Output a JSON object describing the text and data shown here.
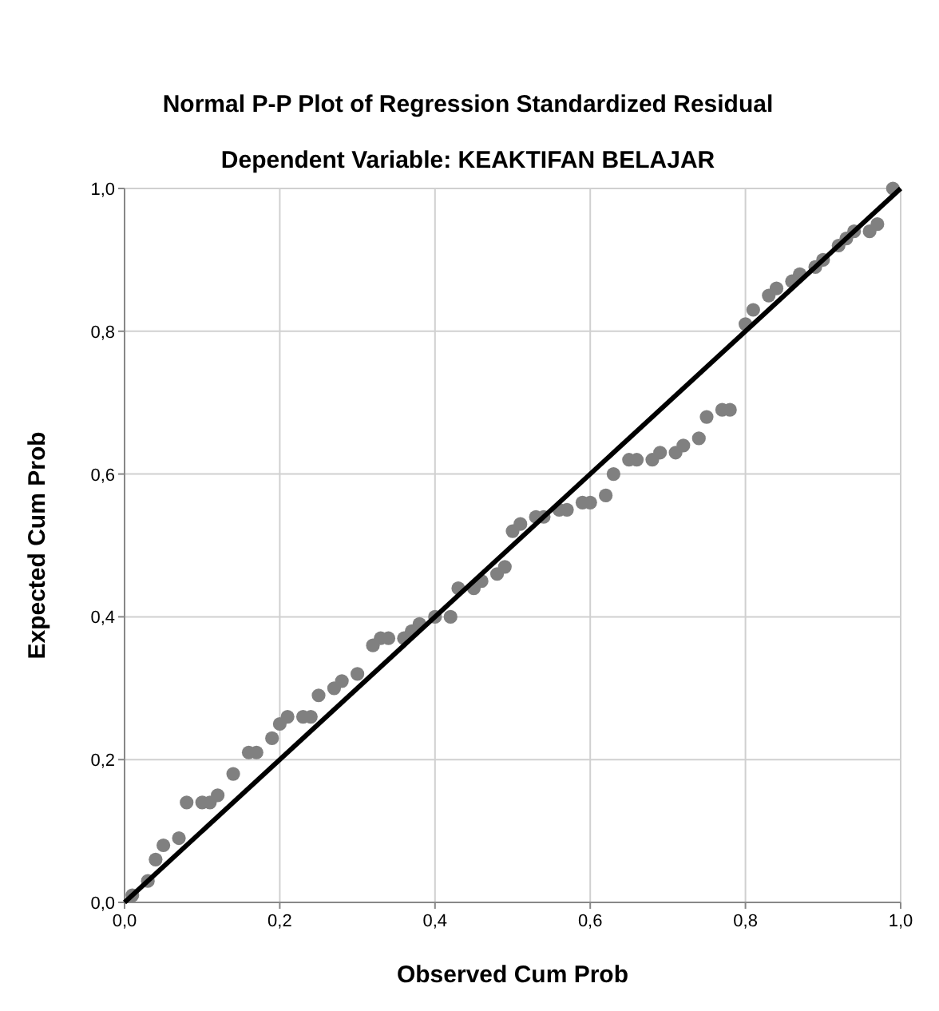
{
  "chart_data": {
    "type": "scatter",
    "title": "Normal P-P Plot of Regression Standardized Residual",
    "subtitle": "Dependent Variable: KEAKTIFAN BELAJAR",
    "xlabel": "Observed Cum Prob",
    "ylabel": "Expected Cum Prob",
    "xlim": [
      0,
      1
    ],
    "ylim": [
      0,
      1
    ],
    "xticks": [
      {
        "value": 0,
        "label": "0,0"
      },
      {
        "value": 0.2,
        "label": "0,2"
      },
      {
        "value": 0.4,
        "label": "0,4"
      },
      {
        "value": 0.6,
        "label": "0,6"
      },
      {
        "value": 0.8,
        "label": "0,8"
      },
      {
        "value": 1,
        "label": "1,0"
      }
    ],
    "yticks": [
      {
        "value": 0,
        "label": "0,0"
      },
      {
        "value": 0.2,
        "label": "0,2"
      },
      {
        "value": 0.4,
        "label": "0,4"
      },
      {
        "value": 0.6,
        "label": "0,6"
      },
      {
        "value": 0.8,
        "label": "0,8"
      },
      {
        "value": 1,
        "label": "1,0"
      }
    ],
    "grid": true,
    "series": [
      {
        "marker": "circle",
        "color": "#808080",
        "x": [
          0.01,
          0.03,
          0.04,
          0.05,
          0.07,
          0.08,
          0.1,
          0.11,
          0.12,
          0.14,
          0.16,
          0.17,
          0.19,
          0.2,
          0.21,
          0.23,
          0.24,
          0.25,
          0.27,
          0.28,
          0.3,
          0.32,
          0.33,
          0.34,
          0.36,
          0.37,
          0.38,
          0.4,
          0.42,
          0.43,
          0.45,
          0.46,
          0.48,
          0.49,
          0.5,
          0.51,
          0.53,
          0.54,
          0.56,
          0.57,
          0.59,
          0.6,
          0.62,
          0.63,
          0.65,
          0.66,
          0.68,
          0.69,
          0.71,
          0.72,
          0.74,
          0.75,
          0.77,
          0.78,
          0.8,
          0.81,
          0.83,
          0.84,
          0.86,
          0.87,
          0.89,
          0.9,
          0.92,
          0.93,
          0.94,
          0.96,
          0.97,
          0.99
        ],
        "values": [
          0.01,
          0.03,
          0.06,
          0.08,
          0.09,
          0.14,
          0.14,
          0.14,
          0.15,
          0.18,
          0.21,
          0.21,
          0.23,
          0.25,
          0.26,
          0.26,
          0.26,
          0.29,
          0.3,
          0.31,
          0.32,
          0.36,
          0.37,
          0.37,
          0.37,
          0.38,
          0.39,
          0.4,
          0.4,
          0.44,
          0.44,
          0.45,
          0.46,
          0.47,
          0.52,
          0.53,
          0.54,
          0.54,
          0.55,
          0.55,
          0.56,
          0.56,
          0.57,
          0.6,
          0.62,
          0.62,
          0.62,
          0.63,
          0.63,
          0.64,
          0.65,
          0.68,
          0.69,
          0.69,
          0.81,
          0.83,
          0.85,
          0.86,
          0.87,
          0.88,
          0.89,
          0.9,
          0.92,
          0.93,
          0.94,
          0.94,
          0.95,
          1.0
        ]
      },
      {
        "type": "line",
        "line_style": "solid",
        "color": "#000000",
        "x": [
          0,
          1
        ],
        "values": [
          0,
          1
        ]
      }
    ]
  }
}
